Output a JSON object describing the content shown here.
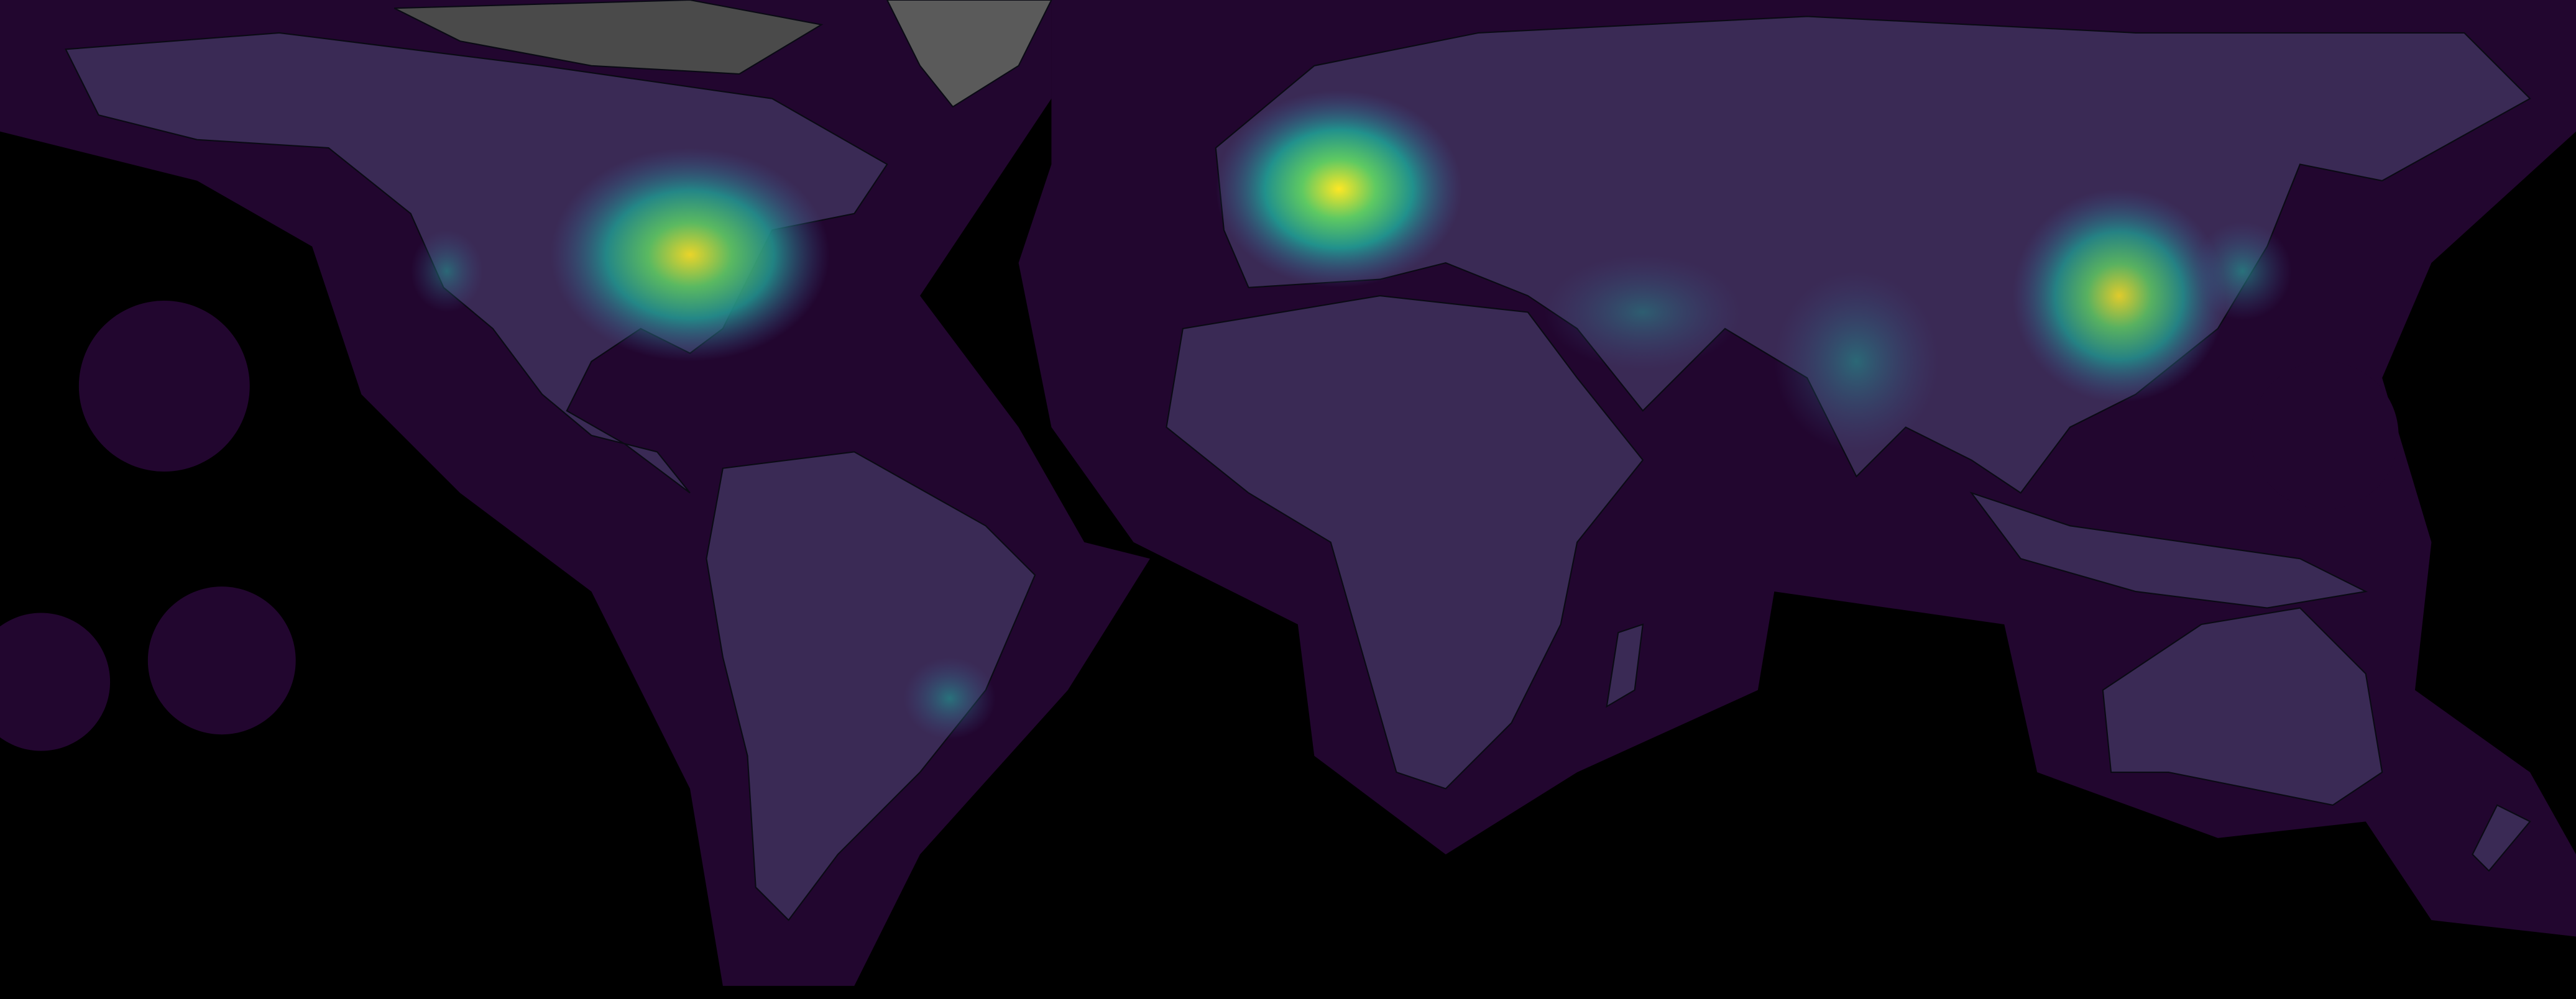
{
  "map": {
    "projection": "equirectangular",
    "colors": {
      "ocean": "#000000",
      "halo": "#22062f",
      "land_base": "#3a2a55",
      "polar_land": "#5a5a5a",
      "borders": "#0a0a14",
      "scale": [
        "#440154",
        "#3b528b",
        "#21918c",
        "#5ec962",
        "#fde725"
      ]
    },
    "hotspots": [
      {
        "region": "western-europe",
        "level": 1.0
      },
      {
        "region": "eastern-united-states",
        "level": 0.85
      },
      {
        "region": "eastern-china",
        "level": 0.85
      },
      {
        "region": "india",
        "level": 0.45
      },
      {
        "region": "japan",
        "level": 0.5
      },
      {
        "region": "southeast-brazil",
        "level": 0.35
      }
    ]
  }
}
